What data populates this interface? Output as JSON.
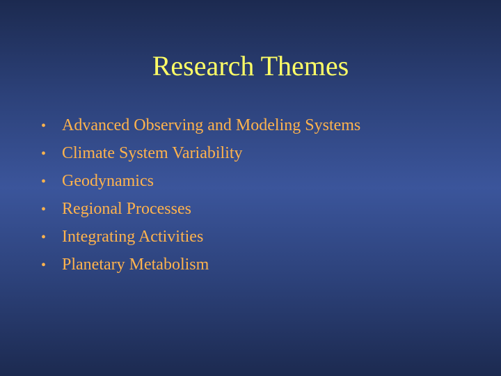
{
  "slide": {
    "title": "Research Themes",
    "bullet_marker": "•",
    "items": [
      {
        "label": "Advanced Observing and Modeling Systems"
      },
      {
        "label": "Climate System Variability"
      },
      {
        "label": "Geodynamics"
      },
      {
        "label": "Regional Processes"
      },
      {
        "label": "Integrating Activities"
      },
      {
        "label": "Planetary Metabolism"
      }
    ]
  },
  "colors": {
    "title": "#ffff66",
    "bullet_text": "#ffb34d",
    "background_dark": "#1c2a50",
    "background_light": "#3b559b"
  }
}
